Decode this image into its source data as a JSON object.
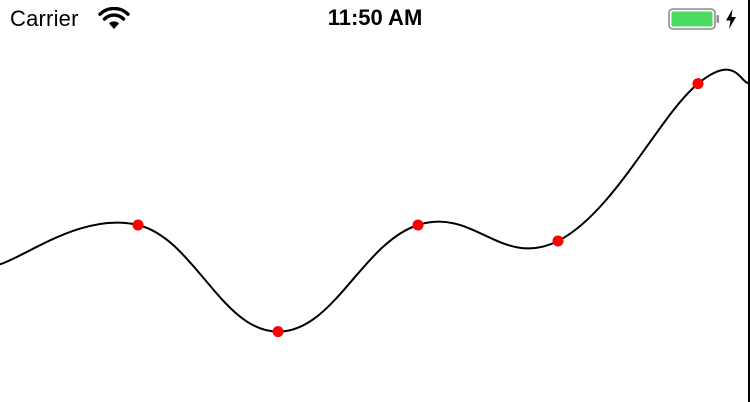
{
  "status_bar": {
    "carrier": "Carrier",
    "time": "11:50 AM",
    "battery_color": "#4cd964",
    "wifi_icon": "wifi-icon",
    "battery_icon": "battery-icon",
    "charging_icon": "charging-bolt-icon"
  },
  "chart_data": {
    "type": "line",
    "interpolation": "smooth",
    "line_color": "#000000",
    "point_color": "#ff0000",
    "x": [
      0,
      1,
      2,
      3,
      4,
      5,
      6
    ],
    "values": [
      45,
      60,
      20,
      60,
      54,
      113,
      113
    ],
    "markers": [
      false,
      true,
      true,
      true,
      true,
      true,
      false
    ],
    "ylim": [
      0,
      120
    ],
    "grid": false,
    "title": "",
    "xlabel": "",
    "ylabel": ""
  }
}
